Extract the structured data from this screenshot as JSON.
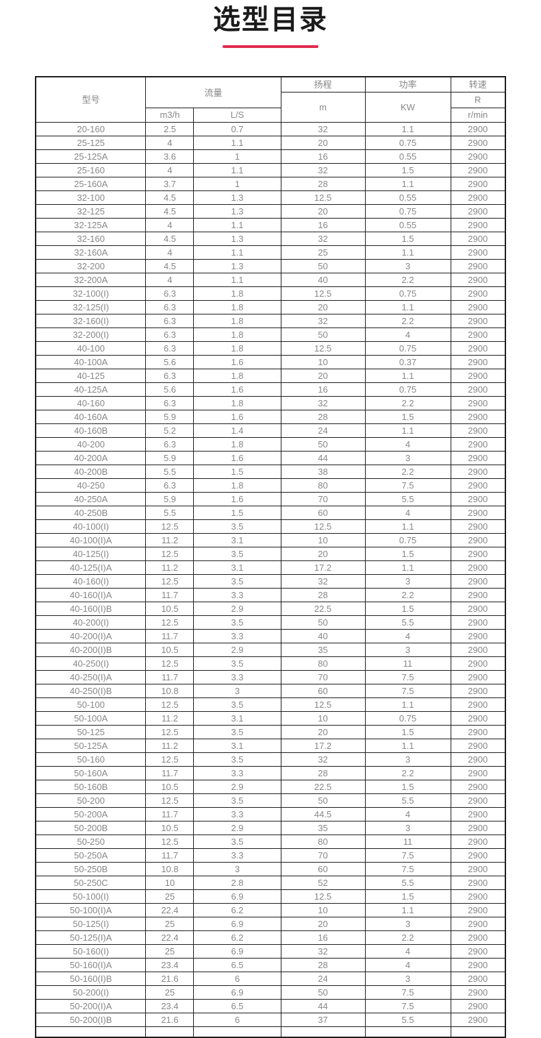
{
  "page": {
    "title": "选型目录"
  },
  "colors": {
    "accent_line": "#e02a4e",
    "table_border": "#1d1d1d",
    "cell_text": "#878787"
  },
  "table": {
    "headers": {
      "model": "型号",
      "flow": "流量",
      "flow_m3h": "m3/h",
      "flow_ls": "L/S",
      "head": "扬程",
      "head_unit": "m",
      "power": "功率",
      "power_unit": "KW",
      "speed": "转速",
      "speed_r": "R",
      "speed_unit": "r/min"
    },
    "columns": [
      "model",
      "flow_m3h",
      "flow_ls",
      "head_m",
      "power_kw",
      "speed_rpm"
    ],
    "rows": [
      [
        "20-160",
        "2.5",
        "0.7",
        "32",
        "1.1",
        "2900"
      ],
      [
        "25-125",
        "4",
        "1.1",
        "20",
        "0.75",
        "2900"
      ],
      [
        "25-125A",
        "3.6",
        "1",
        "16",
        "0.55",
        "2900"
      ],
      [
        "25-160",
        "4",
        "1.1",
        "32",
        "1.5",
        "2900"
      ],
      [
        "25-160A",
        "3.7",
        "1",
        "28",
        "1.1",
        "2900"
      ],
      [
        "32-100",
        "4.5",
        "1.3",
        "12.5",
        "0.55",
        "2900"
      ],
      [
        "32-125",
        "4.5",
        "1.3",
        "20",
        "0.75",
        "2900"
      ],
      [
        "32-125A",
        "4",
        "1.1",
        "16",
        "0.55",
        "2900"
      ],
      [
        "32-160",
        "4.5",
        "1.3",
        "32",
        "1.5",
        "2900"
      ],
      [
        "32-160A",
        "4",
        "1.1",
        "25",
        "1.1",
        "2900"
      ],
      [
        "32-200",
        "4.5",
        "1.3",
        "50",
        "3",
        "2900"
      ],
      [
        "32-200A",
        "4",
        "1.1",
        "40",
        "2.2",
        "2900"
      ],
      [
        "32-100(I)",
        "6.3",
        "1.8",
        "12.5",
        "0.75",
        "2900"
      ],
      [
        "32-125(I)",
        "6.3",
        "1.8",
        "20",
        "1.1",
        "2900"
      ],
      [
        "32-160(I)",
        "6.3",
        "1.8",
        "32",
        "2.2",
        "2900"
      ],
      [
        "32-200(I)",
        "6.3",
        "1.8",
        "50",
        "4",
        "2900"
      ],
      [
        "40-100",
        "6.3",
        "1.8",
        "12.5",
        "0.75",
        "2900"
      ],
      [
        "40-100A",
        "5.6",
        "1.6",
        "10",
        "0.37",
        "2900"
      ],
      [
        "40-125",
        "6.3",
        "1.8",
        "20",
        "1.1",
        "2900"
      ],
      [
        "40-125A",
        "5.6",
        "1.6",
        "16",
        "0.75",
        "2900"
      ],
      [
        "40-160",
        "6.3",
        "1.8",
        "32",
        "2.2",
        "2900"
      ],
      [
        "40-160A",
        "5.9",
        "1.6",
        "28",
        "1.5",
        "2900"
      ],
      [
        "40-160B",
        "5.2",
        "1.4",
        "24",
        "1.1",
        "2900"
      ],
      [
        "40-200",
        "6.3",
        "1.8",
        "50",
        "4",
        "2900"
      ],
      [
        "40-200A",
        "5.9",
        "1.6",
        "44",
        "3",
        "2900"
      ],
      [
        "40-200B",
        "5.5",
        "1.5",
        "38",
        "2.2",
        "2900"
      ],
      [
        "40-250",
        "6.3",
        "1.8",
        "80",
        "7.5",
        "2900"
      ],
      [
        "40-250A",
        "5.9",
        "1.6",
        "70",
        "5.5",
        "2900"
      ],
      [
        "40-250B",
        "5.5",
        "1.5",
        "60",
        "4",
        "2900"
      ],
      [
        "40-100(I)",
        "12.5",
        "3.5",
        "12.5",
        "1.1",
        "2900"
      ],
      [
        "40-100(I)A",
        "11.2",
        "3.1",
        "10",
        "0.75",
        "2900"
      ],
      [
        "40-125(I)",
        "12.5",
        "3.5",
        "20",
        "1.5",
        "2900"
      ],
      [
        "40-125(I)A",
        "11.2",
        "3.1",
        "17.2",
        "1.1",
        "2900"
      ],
      [
        "40-160(I)",
        "12.5",
        "3.5",
        "32",
        "3",
        "2900"
      ],
      [
        "40-160(I)A",
        "11.7",
        "3.3",
        "28",
        "2.2",
        "2900"
      ],
      [
        "40-160(I)B",
        "10.5",
        "2.9",
        "22.5",
        "1.5",
        "2900"
      ],
      [
        "40-200(I)",
        "12.5",
        "3.5",
        "50",
        "5.5",
        "2900"
      ],
      [
        "40-200(I)A",
        "11.7",
        "3.3",
        "40",
        "4",
        "2900"
      ],
      [
        "40-200(I)B",
        "10.5",
        "2.9",
        "35",
        "3",
        "2900"
      ],
      [
        "40-250(I)",
        "12.5",
        "3.5",
        "80",
        "11",
        "2900"
      ],
      [
        "40-250(I)A",
        "11.7",
        "3.3",
        "70",
        "7.5",
        "2900"
      ],
      [
        "40-250(I)B",
        "10.8",
        "3",
        "60",
        "7.5",
        "2900"
      ],
      [
        "50-100",
        "12.5",
        "3.5",
        "12.5",
        "1.1",
        "2900"
      ],
      [
        "50-100A",
        "11.2",
        "3.1",
        "10",
        "0.75",
        "2900"
      ],
      [
        "50-125",
        "12.5",
        "3.5",
        "20",
        "1.5",
        "2900"
      ],
      [
        "50-125A",
        "11.2",
        "3.1",
        "17.2",
        "1.1",
        "2900"
      ],
      [
        "50-160",
        "12.5",
        "3.5",
        "32",
        "3",
        "2900"
      ],
      [
        "50-160A",
        "11.7",
        "3.3",
        "28",
        "2.2",
        "2900"
      ],
      [
        "50-160B",
        "10.5",
        "2.9",
        "22.5",
        "1.5",
        "2900"
      ],
      [
        "50-200",
        "12.5",
        "3.5",
        "50",
        "5.5",
        "2900"
      ],
      [
        "50-200A",
        "11.7",
        "3.3",
        "44.5",
        "4",
        "2900"
      ],
      [
        "50-200B",
        "10.5",
        "2.9",
        "35",
        "3",
        "2900"
      ],
      [
        "50-250",
        "12.5",
        "3.5",
        "80",
        "11",
        "2900"
      ],
      [
        "50-250A",
        "11.7",
        "3.3",
        "70",
        "7.5",
        "2900"
      ],
      [
        "50-250B",
        "10.8",
        "3",
        "60",
        "7.5",
        "2900"
      ],
      [
        "50-250C",
        "10",
        "2.8",
        "52",
        "5.5",
        "2900"
      ],
      [
        "50-100(I)",
        "25",
        "6.9",
        "12.5",
        "1.5",
        "2900"
      ],
      [
        "50-100(I)A",
        "22.4",
        "6.2",
        "10",
        "1.1",
        "2900"
      ],
      [
        "50-125(I)",
        "25",
        "6.9",
        "20",
        "3",
        "2900"
      ],
      [
        "50-125(I)A",
        "22.4",
        "6.2",
        "16",
        "2.2",
        "2900"
      ],
      [
        "50-160(I)",
        "25",
        "6.9",
        "32",
        "4",
        "2900"
      ],
      [
        "50-160(I)A",
        "23.4",
        "6.5",
        "28",
        "4",
        "2900"
      ],
      [
        "50-160(I)B",
        "21.6",
        "6",
        "24",
        "3",
        "2900"
      ],
      [
        "50-200(I)",
        "25",
        "6.9",
        "50",
        "7.5",
        "2900"
      ],
      [
        "50-200(I)A",
        "23.4",
        "6.5",
        "44",
        "7.5",
        "2900"
      ],
      [
        "50-200(I)B",
        "21.6",
        "6",
        "37",
        "5.5",
        "2900"
      ]
    ]
  }
}
